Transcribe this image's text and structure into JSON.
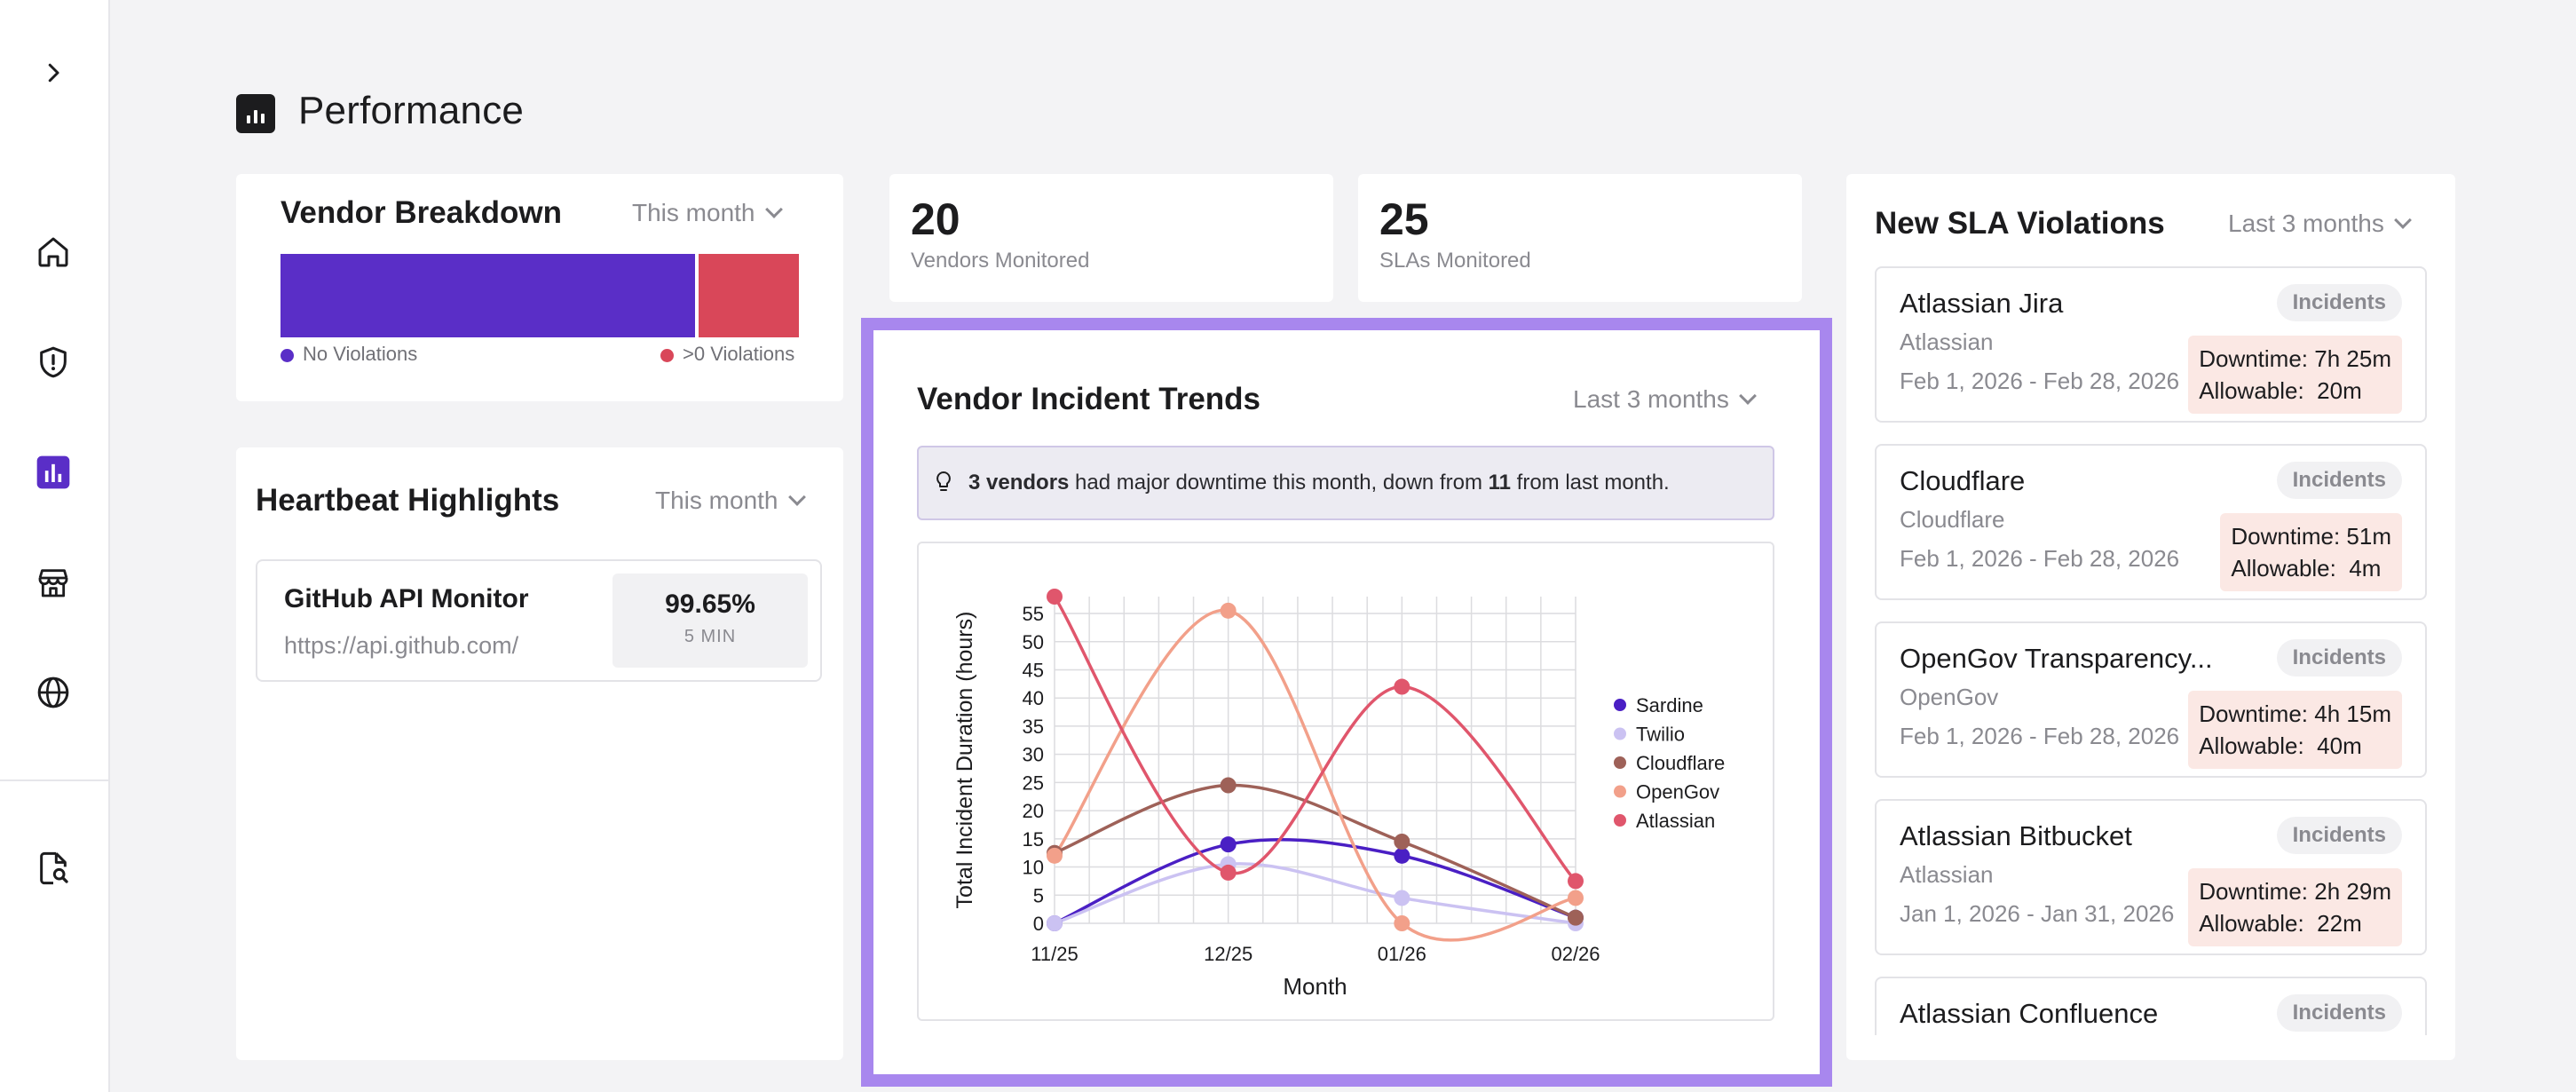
{
  "page": {
    "title": "Performance"
  },
  "sidebar": {
    "items": [
      {
        "icon": "chevron-right-icon",
        "active": false
      },
      {
        "icon": "home-icon",
        "active": false
      },
      {
        "icon": "shield-alert-icon",
        "active": false
      },
      {
        "icon": "bar-chart-icon",
        "active": true
      },
      {
        "icon": "store-icon",
        "active": false
      },
      {
        "icon": "globe-icon",
        "active": false
      },
      {
        "icon": "file-search-icon",
        "active": false
      }
    ],
    "accent": "#5a2ec7"
  },
  "vendor_breakdown": {
    "title": "Vendor Breakdown",
    "period": "This month",
    "no_violations_label": "No Violations",
    "violations_label": ">0 Violations",
    "no_violations_share": 0.8,
    "violations_share": 0.2,
    "colors": {
      "no_violations": "#5a2ec7",
      "violations": "#d94759"
    }
  },
  "stats": {
    "vendors": {
      "value": "20",
      "label": "Vendors Monitored"
    },
    "slas": {
      "value": "25",
      "label": "SLAs Monitored"
    }
  },
  "heartbeat": {
    "title": "Heartbeat Highlights",
    "period": "This month",
    "items": [
      {
        "name": "GitHub API Monitor",
        "url": "https://api.github.com/",
        "uptime": "99.65%",
        "interval": "5 MIN"
      }
    ]
  },
  "trends": {
    "title": "Vendor Incident Trends",
    "period": "Last 3 months",
    "insight": {
      "count": "3 vendors",
      "text_a": " had major downtime this month, down from ",
      "prev": "11",
      "text_b": " from last month."
    }
  },
  "chart_data": {
    "type": "line",
    "xlabel": "Month",
    "ylabel": "Total Incident Duration (hours)",
    "categories": [
      "11/25",
      "12/25",
      "01/26",
      "02/26"
    ],
    "ylim": [
      0,
      58
    ],
    "yticks": [
      0,
      5,
      10,
      15,
      20,
      25,
      30,
      35,
      40,
      45,
      50,
      55
    ],
    "grid": true,
    "legend_position": "right",
    "series": [
      {
        "name": "Sardine",
        "color": "#4a1fc4",
        "values": [
          0,
          14,
          12,
          1
        ]
      },
      {
        "name": "Twilio",
        "color": "#cbc2f2",
        "values": [
          0,
          10.5,
          4.5,
          0
        ]
      },
      {
        "name": "Cloudflare",
        "color": "#9e6158",
        "values": [
          12.5,
          24.5,
          14.5,
          1
        ]
      },
      {
        "name": "OpenGov",
        "color": "#f2a08a",
        "values": [
          12,
          55.5,
          0,
          4.5
        ]
      },
      {
        "name": "Atlassian",
        "color": "#e0566c",
        "values": [
          58,
          9,
          42,
          7.5
        ]
      }
    ]
  },
  "sla": {
    "title": "New SLA Violations",
    "period": "Last 3 months",
    "badge": "Incidents",
    "downtime_label": "Downtime:",
    "allowable_label": "Allowable:",
    "items": [
      {
        "name": "Atlassian Jira",
        "vendor": "Atlassian",
        "dates": "Feb 1, 2026 - Feb 28, 2026",
        "downtime": "7h 25m",
        "allowable": "20m"
      },
      {
        "name": "Cloudflare",
        "vendor": "Cloudflare",
        "dates": "Feb 1, 2026 - Feb 28, 2026",
        "downtime": "51m",
        "allowable": "4m"
      },
      {
        "name": "OpenGov Transparency...",
        "vendor": "OpenGov",
        "dates": "Feb 1, 2026 - Feb 28, 2026",
        "downtime": "4h 15m",
        "allowable": "40m"
      },
      {
        "name": "Atlassian Bitbucket",
        "vendor": "Atlassian",
        "dates": "Jan 1, 2026 - Jan 31, 2026",
        "downtime": "2h 29m",
        "allowable": "22m"
      },
      {
        "name": "Atlassian Confluence",
        "vendor": "",
        "dates": "",
        "downtime": "",
        "allowable": ""
      }
    ]
  }
}
